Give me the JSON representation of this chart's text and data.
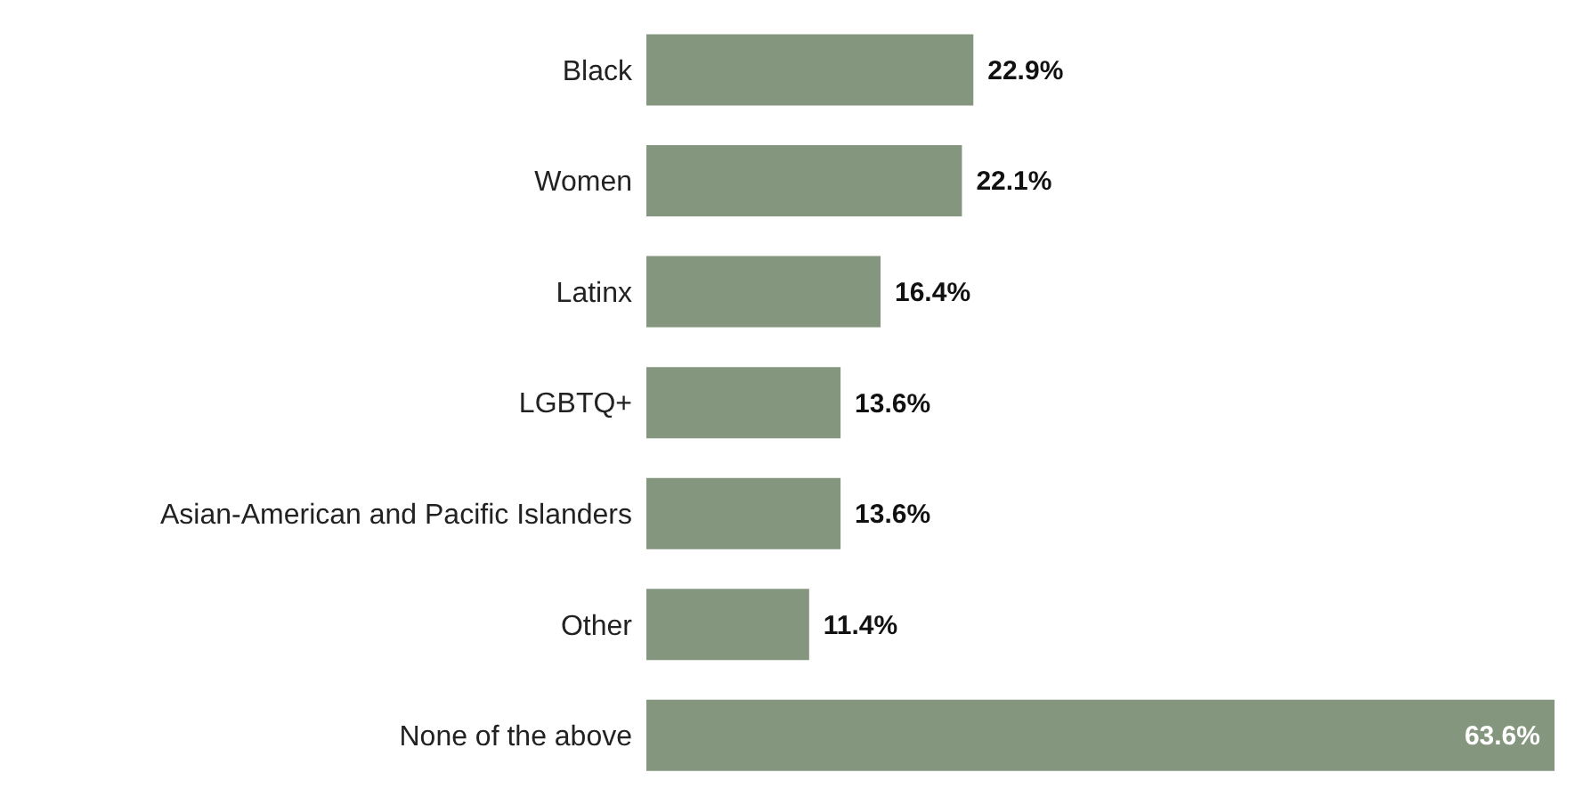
{
  "chart_data": {
    "type": "bar",
    "orientation": "horizontal",
    "categories": [
      "Black",
      "Women",
      "Latinx",
      "LGBTQ+",
      "Asian-American and Pacific Islanders",
      "Other",
      "None of the above"
    ],
    "values": [
      22.9,
      22.1,
      16.4,
      13.6,
      13.6,
      11.4,
      63.6
    ],
    "value_labels": [
      "22.9%",
      "22.1%",
      "16.4%",
      "13.6%",
      "13.6%",
      "11.4%",
      "63.6%"
    ],
    "color": "#85967f",
    "grid": false,
    "legend": false,
    "tick_labels": "y"
  }
}
